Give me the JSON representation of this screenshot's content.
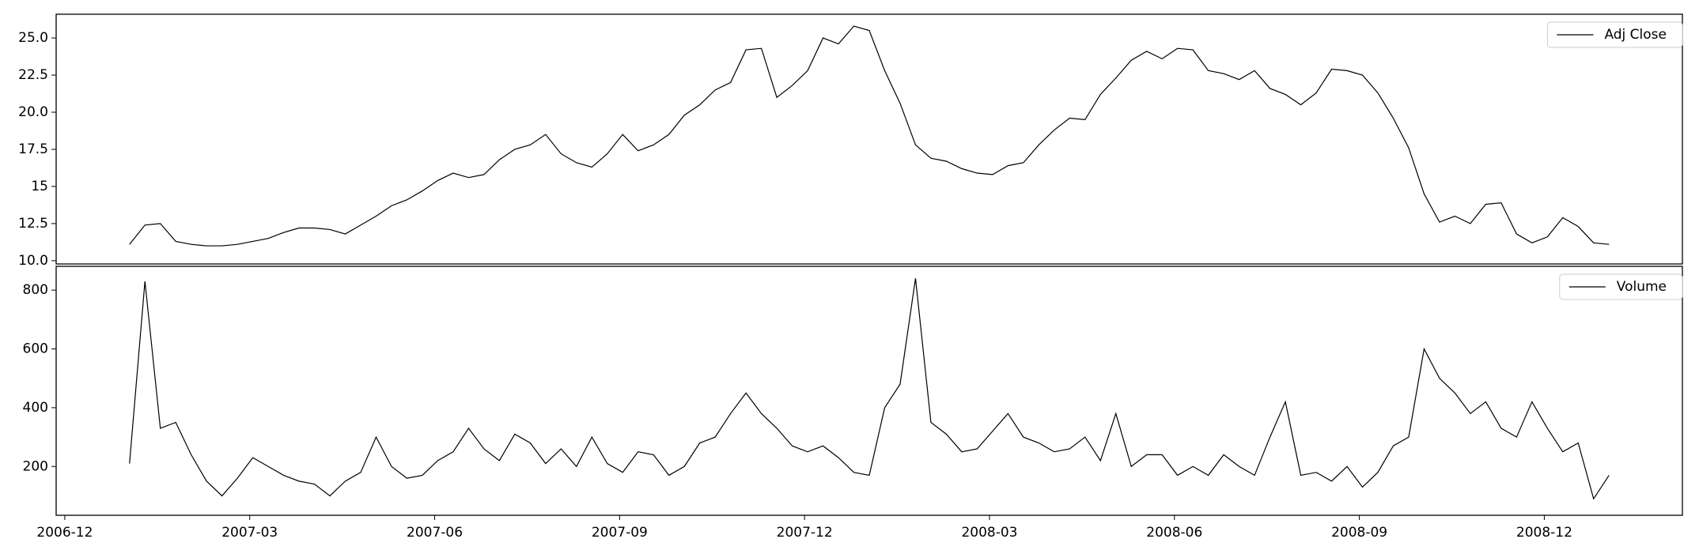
{
  "chart_data": [
    {
      "type": "line",
      "legend": "upper right",
      "x": [
        1.05,
        1.3,
        1.55,
        1.8,
        2.05,
        2.3,
        2.55,
        2.8,
        3.05,
        3.3,
        3.55,
        3.8,
        4.05,
        4.3,
        4.55,
        4.8,
        5.05,
        5.3,
        5.55,
        5.8,
        6.05,
        6.3,
        6.55,
        6.8,
        7.05,
        7.3,
        7.55,
        7.8,
        8.05,
        8.3,
        8.55,
        8.8,
        9.05,
        9.3,
        9.55,
        9.8,
        10.05,
        10.3,
        10.55,
        10.8,
        11.05,
        11.3,
        11.55,
        11.8,
        12.05,
        12.3,
        12.55,
        12.8,
        13.05,
        13.3,
        13.55,
        13.8,
        14.05,
        14.3,
        14.55,
        14.8,
        15.05,
        15.3,
        15.55,
        15.8,
        16.05,
        16.3,
        16.55,
        16.8,
        17.05,
        17.3,
        17.55,
        17.8,
        18.05,
        18.3,
        18.55,
        18.8,
        19.05,
        19.3,
        19.55,
        19.8,
        20.05,
        20.3,
        20.55,
        20.8,
        21.05,
        21.3,
        21.55,
        21.8,
        22.05,
        22.3,
        22.55,
        22.8,
        23.05,
        23.3,
        23.55,
        23.8,
        24.05,
        24.3,
        24.55,
        24.8,
        25.05
      ],
      "series": [
        {
          "name": "Adj Close",
          "color": "#000000",
          "values": [
            11.1,
            12.4,
            12.5,
            11.3,
            11.1,
            11.0,
            11.0,
            11.1,
            11.3,
            11.5,
            11.9,
            12.2,
            12.2,
            12.1,
            11.8,
            12.4,
            13.0,
            13.7,
            14.1,
            14.7,
            15.4,
            15.9,
            15.6,
            15.8,
            16.8,
            17.5,
            17.8,
            18.5,
            17.2,
            16.6,
            16.3,
            17.2,
            18.5,
            17.4,
            17.8,
            18.5,
            19.8,
            20.5,
            21.5,
            22.0,
            24.2,
            24.3,
            21.0,
            21.8,
            22.8,
            25.0,
            24.6,
            25.8,
            25.5,
            22.8,
            20.6,
            17.8,
            16.9,
            16.7,
            16.2,
            15.9,
            15.8,
            16.4,
            16.6,
            17.8,
            18.8,
            19.6,
            19.5,
            21.2,
            22.3,
            23.5,
            24.1,
            23.6,
            24.3,
            24.2,
            22.8,
            22.6,
            22.2,
            22.8,
            21.6,
            21.2,
            20.5,
            21.3,
            22.9,
            22.8,
            22.5,
            21.3,
            19.6,
            17.6,
            14.5,
            12.6,
            13.0,
            12.5,
            13.8,
            13.9,
            11.8,
            11.2,
            11.6,
            12.9,
            12.3,
            11.2,
            11.1
          ]
        }
      ],
      "xlim": [
        -0.14,
        26.24
      ],
      "ylim": [
        9.78,
        26.6
      ],
      "yticks": [
        {
          "value": 10,
          "label": "10.0"
        },
        12.5,
        15,
        {
          "value": 15,
          "label": "15.0"
        },
        17.5,
        {
          "value": 20,
          "label": "20.0"
        },
        22.5,
        {
          "value": 25,
          "label": "25.0"
        }
      ]
    },
    {
      "type": "line",
      "legend": "upper right",
      "x": [
        1.05,
        1.3,
        1.55,
        1.8,
        2.05,
        2.3,
        2.55,
        2.8,
        3.05,
        3.3,
        3.55,
        3.8,
        4.05,
        4.3,
        4.55,
        4.8,
        5.05,
        5.3,
        5.55,
        5.8,
        6.05,
        6.3,
        6.55,
        6.8,
        7.05,
        7.3,
        7.55,
        7.8,
        8.05,
        8.3,
        8.55,
        8.8,
        9.05,
        9.3,
        9.55,
        9.8,
        10.05,
        10.3,
        10.55,
        10.8,
        11.05,
        11.3,
        11.55,
        11.8,
        12.05,
        12.3,
        12.55,
        12.8,
        13.05,
        13.3,
        13.55,
        13.8,
        14.05,
        14.3,
        14.55,
        14.8,
        15.05,
        15.3,
        15.55,
        15.8,
        16.05,
        16.3,
        16.55,
        16.8,
        17.05,
        17.3,
        17.55,
        17.8,
        18.05,
        18.3,
        18.55,
        18.8,
        19.05,
        19.3,
        19.55,
        19.8,
        20.05,
        20.3,
        20.55,
        20.8,
        21.05,
        21.3,
        21.55,
        21.8,
        22.05,
        22.3,
        22.55,
        22.8,
        23.05,
        23.3,
        23.55,
        23.8,
        24.05,
        24.3,
        24.55,
        24.8,
        25.05
      ],
      "series": [
        {
          "name": "Volume",
          "color": "#000000",
          "values": [
            210,
            830,
            330,
            350,
            240,
            150,
            100,
            160,
            230,
            200,
            170,
            150,
            140,
            100,
            150,
            180,
            300,
            200,
            160,
            170,
            220,
            250,
            330,
            260,
            220,
            310,
            280,
            210,
            260,
            200,
            300,
            210,
            180,
            250,
            240,
            170,
            200,
            280,
            300,
            380,
            450,
            380,
            330,
            270,
            250,
            270,
            230,
            180,
            170,
            400,
            480,
            840,
            350,
            310,
            250,
            260,
            320,
            380,
            300,
            280,
            250,
            260,
            300,
            220,
            380,
            200,
            240,
            240,
            170,
            200,
            170,
            240,
            200,
            170,
            300,
            420,
            170,
            180,
            150,
            200,
            130,
            180,
            270,
            300,
            600,
            500,
            450,
            380,
            420,
            330,
            300,
            420,
            330,
            250,
            280,
            90,
            170
          ]
        }
      ],
      "xlim": [
        -0.14,
        26.24
      ],
      "ylim": [
        34,
        881
      ],
      "yticks": [
        200,
        400,
        600,
        800
      ],
      "xticks": [
        {
          "value": 0,
          "label": "2006-12"
        },
        {
          "value": 3,
          "label": "2007-03"
        },
        {
          "value": 6,
          "label": "2007-06"
        },
        {
          "value": 9,
          "label": "2007-09"
        },
        {
          "value": 12,
          "label": "2007-12"
        },
        {
          "value": 15,
          "label": "2008-03"
        },
        {
          "value": 18,
          "label": "2008-06"
        },
        {
          "value": 21,
          "label": "2008-09"
        },
        {
          "value": 24,
          "label": "2008-12"
        }
      ]
    }
  ]
}
